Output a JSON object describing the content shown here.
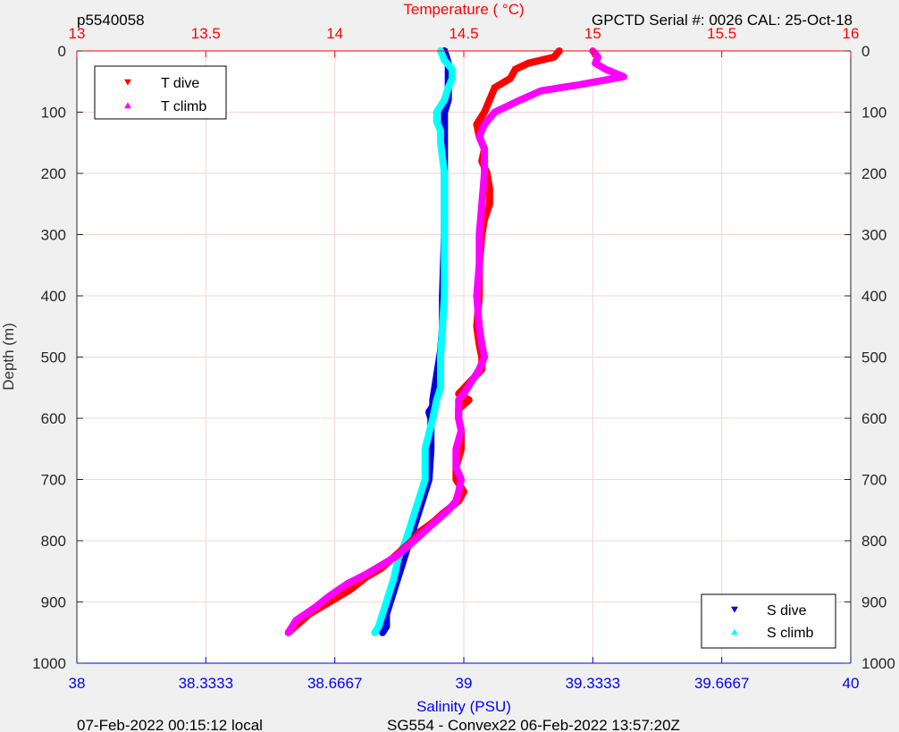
{
  "header": {
    "left": "p5540058",
    "right": "GPCTD Serial #: 0026 CAL: 25-Oct-18"
  },
  "footer": {
    "left": "07-Feb-2022 00:15:12 local",
    "right": "SG554 - Convex22 06-Feb-2022 13:57:20Z"
  },
  "colors": {
    "background": "#f0f0f0",
    "plot_bg": "#ffffff",
    "temp_axis": "#ff0000",
    "sal_axis": "#0000ff",
    "t_dive": "#ff0000",
    "t_climb": "#ff00ff",
    "s_dive": "#0000dd",
    "s_climb": "#00ffff",
    "grid": "#f5d5d5"
  },
  "chart_data": {
    "type": "scatter",
    "top_axis": {
      "label": "Temperature (    °C)",
      "range": [
        13,
        16
      ],
      "ticks": [
        13,
        13.5,
        14,
        14.5,
        15,
        15.5,
        16
      ],
      "tick_labels": [
        "13",
        "13.5",
        "14",
        "14.5",
        "15",
        "15.5",
        "16"
      ]
    },
    "bottom_axis": {
      "label": "Salinity (PSU)",
      "range": [
        38,
        40
      ],
      "ticks": [
        38,
        38.3333,
        38.6667,
        39,
        39.3333,
        39.6667,
        40
      ],
      "tick_labels": [
        "38",
        "38.3333",
        "38.6667",
        "39",
        "39.3333",
        "39.6667",
        "40"
      ]
    },
    "y_axis": {
      "label": "Depth (m)",
      "range": [
        0,
        1000
      ],
      "reversed": true,
      "ticks": [
        0,
        100,
        200,
        300,
        400,
        500,
        600,
        700,
        800,
        900,
        1000
      ],
      "tick_labels": [
        "0",
        "100",
        "200",
        "300",
        "400",
        "500",
        "600",
        "700",
        "800",
        "900",
        "1000"
      ]
    },
    "grid": true,
    "legend_temperature": {
      "placement": "top-left",
      "entries": [
        {
          "label": "T dive",
          "series": "t_dive"
        },
        {
          "label": "T climb",
          "series": "t_climb"
        }
      ]
    },
    "legend_salinity": {
      "placement": "bottom-right",
      "entries": [
        {
          "label": "S dive",
          "series": "s_dive"
        },
        {
          "label": "S climb",
          "series": "s_climb"
        }
      ]
    },
    "series": [
      {
        "name": "T dive",
        "key": "t_dive",
        "axis": "temperature",
        "marker": "triangle-down",
        "x": [
          14.87,
          14.85,
          14.75,
          14.7,
          14.68,
          14.62,
          14.6,
          14.58,
          14.55,
          14.56,
          14.58,
          14.57,
          14.59,
          14.6,
          14.6,
          14.58,
          14.57,
          14.56,
          14.56,
          14.55,
          14.56,
          14.57,
          14.57,
          14.48,
          14.52,
          14.48,
          14.48,
          14.49,
          14.49,
          14.47,
          14.47,
          14.5,
          14.48,
          14.42,
          14.38,
          14.33,
          14.3,
          14.26,
          14.22,
          14.18,
          14.12,
          14.06,
          13.98,
          13.9,
          13.82
        ],
        "y": [
          0,
          10,
          20,
          30,
          45,
          60,
          80,
          100,
          120,
          140,
          160,
          180,
          200,
          225,
          250,
          275,
          300,
          350,
          400,
          450,
          480,
          500,
          520,
          560,
          570,
          585,
          600,
          620,
          650,
          680,
          700,
          720,
          735,
          755,
          770,
          785,
          800,
          815,
          830,
          845,
          860,
          880,
          900,
          920,
          950
        ]
      },
      {
        "name": "T climb",
        "key": "t_climb",
        "axis": "temperature",
        "marker": "triangle-up",
        "x": [
          15.0,
          15.02,
          15.01,
          15.05,
          15.12,
          14.95,
          14.8,
          14.72,
          14.62,
          14.58,
          14.56,
          14.58,
          14.58,
          14.57,
          14.56,
          14.56,
          14.55,
          14.56,
          14.57,
          14.58,
          14.57,
          14.56,
          14.5,
          14.48,
          14.48,
          14.49,
          14.47,
          14.47,
          14.49,
          14.48,
          14.47,
          14.44,
          14.4,
          14.36,
          14.32,
          14.28,
          14.24,
          14.18,
          14.12,
          14.05,
          13.98,
          13.92,
          13.85,
          13.82
        ],
        "y": [
          0,
          10,
          20,
          30,
          42,
          55,
          65,
          80,
          100,
          120,
          140,
          160,
          200,
          250,
          300,
          350,
          400,
          450,
          480,
          500,
          510,
          520,
          560,
          570,
          600,
          620,
          650,
          680,
          700,
          720,
          735,
          750,
          765,
          780,
          795,
          810,
          825,
          840,
          855,
          870,
          890,
          910,
          930,
          950
        ]
      },
      {
        "name": "S dive",
        "key": "s_dive",
        "axis": "salinity",
        "marker": "triangle-down",
        "x": [
          38.95,
          38.96,
          38.96,
          38.96,
          38.96,
          38.95,
          38.95,
          38.95,
          38.95,
          38.95,
          38.945,
          38.945,
          38.94,
          38.93,
          38.92,
          38.92,
          38.91,
          38.915,
          38.915,
          38.91,
          38.9,
          38.89,
          38.88,
          38.87,
          38.86,
          38.85,
          38.84,
          38.83,
          38.82,
          38.81,
          38.8,
          38.8,
          38.79
        ],
        "y": [
          0,
          20,
          40,
          60,
          80,
          100,
          120,
          150,
          200,
          300,
          400,
          450,
          490,
          530,
          570,
          580,
          590,
          600,
          650,
          700,
          720,
          740,
          760,
          780,
          800,
          820,
          840,
          860,
          880,
          900,
          920,
          940,
          950
        ]
      },
      {
        "name": "S climb",
        "key": "s_climb",
        "axis": "salinity",
        "marker": "triangle-up",
        "x": [
          38.94,
          38.95,
          38.97,
          38.97,
          38.96,
          38.95,
          38.93,
          38.93,
          38.94,
          38.94,
          38.95,
          38.95,
          38.95,
          38.945,
          38.94,
          38.94,
          38.93,
          38.92,
          38.9,
          38.9,
          38.9,
          38.89,
          38.88,
          38.87,
          38.86,
          38.85,
          38.83,
          38.82,
          38.81,
          38.8,
          38.79,
          38.78,
          38.77
        ],
        "y": [
          0,
          15,
          30,
          45,
          60,
          80,
          100,
          115,
          130,
          150,
          200,
          300,
          400,
          450,
          500,
          550,
          570,
          600,
          650,
          680,
          700,
          720,
          740,
          760,
          780,
          800,
          830,
          860,
          880,
          900,
          920,
          940,
          950
        ]
      }
    ]
  }
}
